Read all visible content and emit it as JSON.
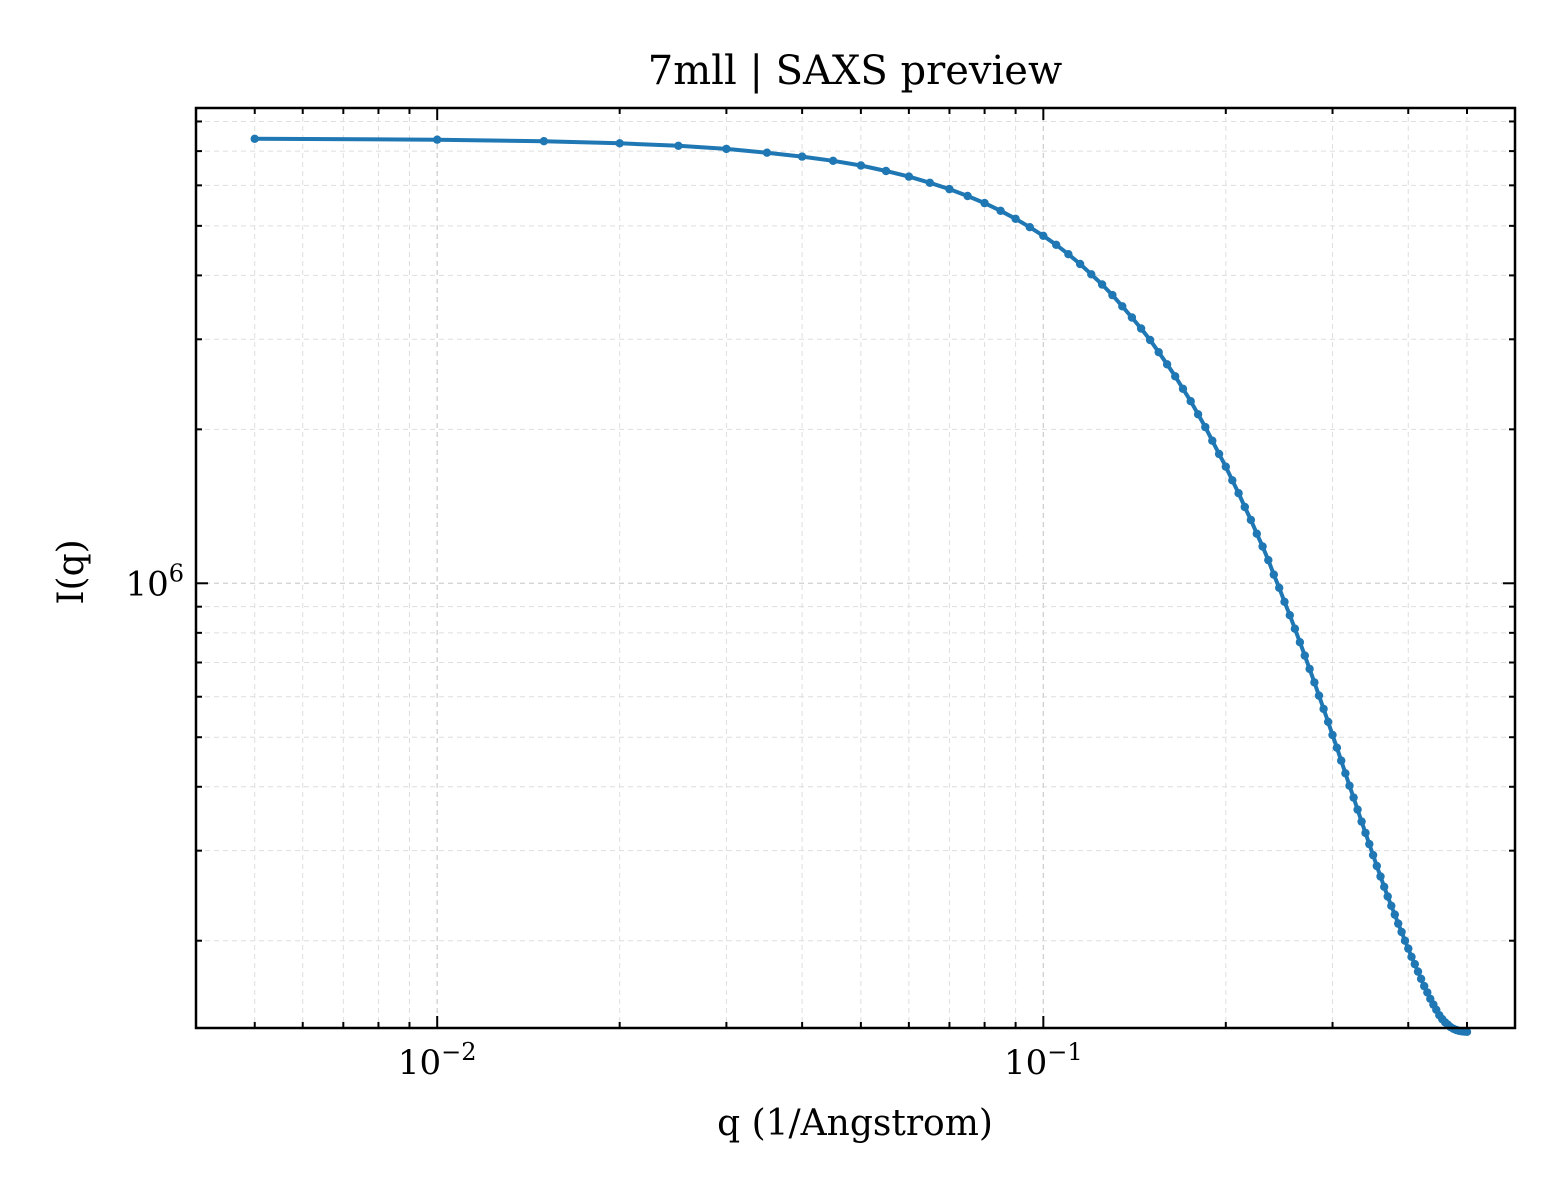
{
  "chart_data": {
    "type": "line",
    "title": "7mll | SAXS preview",
    "xlabel": "q (1/Angstrom)",
    "ylabel": "I(q)",
    "x_scale": "log",
    "y_scale": "log",
    "xlim": [
      0.004,
      0.6
    ],
    "ylim": [
      135000,
      8500000
    ],
    "grid": true,
    "legend": "none",
    "line_color": "#1f77b4",
    "x_ticks": [
      {
        "value": 0.01,
        "base": "10",
        "exp": "−2"
      },
      {
        "value": 0.1,
        "base": "10",
        "exp": "−1"
      }
    ],
    "y_ticks": [
      {
        "value": 1000000,
        "base": "10",
        "exp": "6"
      }
    ],
    "series": [
      {
        "x": [
          0.005,
          0.01,
          0.015,
          0.02,
          0.025,
          0.03,
          0.035,
          0.04,
          0.045,
          0.05,
          0.055,
          0.06,
          0.065,
          0.07,
          0.075,
          0.08,
          0.085,
          0.09,
          0.095,
          0.1,
          0.105,
          0.11,
          0.115,
          0.12,
          0.125,
          0.13,
          0.135,
          0.14,
          0.145,
          0.15,
          0.155,
          0.16,
          0.165,
          0.17,
          0.175,
          0.18,
          0.185,
          0.19,
          0.195,
          0.2,
          0.205,
          0.21,
          0.215,
          0.22,
          0.225,
          0.23,
          0.235,
          0.24,
          0.245,
          0.25,
          0.255,
          0.26,
          0.265,
          0.27,
          0.275,
          0.28,
          0.285,
          0.29,
          0.295,
          0.3,
          0.305,
          0.31,
          0.315,
          0.32,
          0.325,
          0.33,
          0.335,
          0.34,
          0.345,
          0.35,
          0.355,
          0.36,
          0.365,
          0.37,
          0.375,
          0.38,
          0.385,
          0.39,
          0.395,
          0.4,
          0.405,
          0.41,
          0.415,
          0.42,
          0.425,
          0.43,
          0.435,
          0.44,
          0.445,
          0.45,
          0.455,
          0.46,
          0.465,
          0.47,
          0.475,
          0.48,
          0.485,
          0.49,
          0.495,
          0.5
        ],
        "y": [
          7400000,
          7370000,
          7320000,
          7250000,
          7170000,
          7070000,
          6950000,
          6830000,
          6700000,
          6560000,
          6400000,
          6240000,
          6070000,
          5900000,
          5720000,
          5540000,
          5350000,
          5160000,
          4970000,
          4780000,
          4590000,
          4400000,
          4210000,
          4020000,
          3840000,
          3660000,
          3480000,
          3310000,
          3150000,
          2990000,
          2830000,
          2680000,
          2540000,
          2400000,
          2270000,
          2140000,
          2020000,
          1900000,
          1790000,
          1690000,
          1590000,
          1500000,
          1410000,
          1330000,
          1250000,
          1180000,
          1110000,
          1040000,
          980000,
          920000,
          866000,
          815000,
          767000,
          722000,
          680000,
          640000,
          603000,
          568000,
          536000,
          505000,
          477000,
          450000,
          425000,
          402000,
          381000,
          361000,
          342000,
          325000,
          309000,
          294000,
          280000,
          267000,
          255000,
          244000,
          234000,
          225000,
          216000,
          208000,
          200000,
          193000,
          186000,
          180000,
          174000,
          168500,
          163000,
          158500,
          154000,
          150000,
          146500,
          143000,
          140500,
          138500,
          137000,
          135500,
          134500,
          133800,
          133300,
          133000,
          132800,
          132700
        ]
      }
    ]
  }
}
